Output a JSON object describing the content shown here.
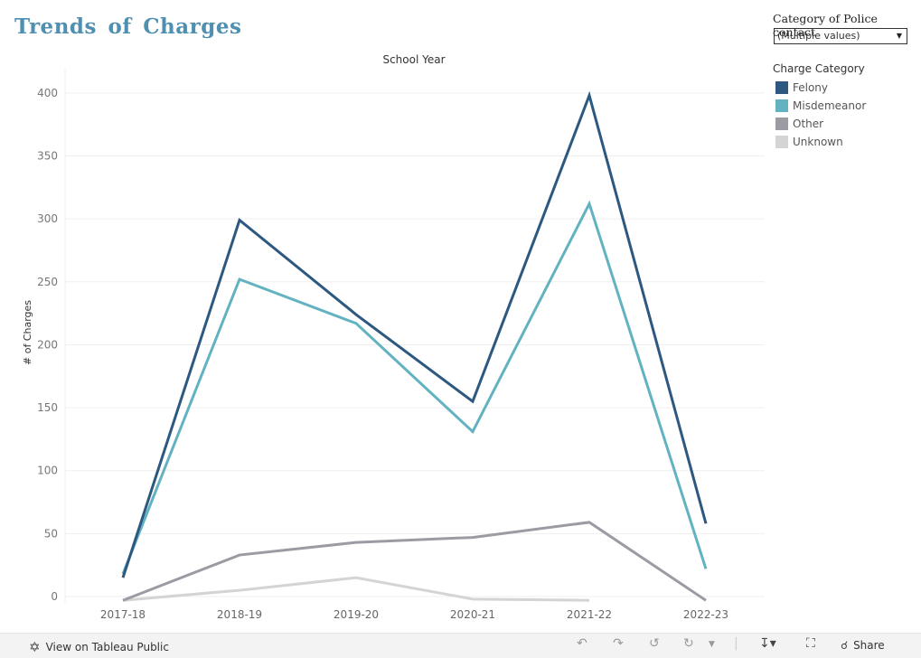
{
  "title": "Trends of Charges",
  "filter": {
    "label": "Category of Police contact",
    "value": "(Multiple values)"
  },
  "legend": {
    "title": "Charge Category",
    "items": [
      {
        "label": "Felony",
        "color": "#2d587f"
      },
      {
        "label": "Misdemeanor",
        "color": "#63b2c1"
      },
      {
        "label": "Other",
        "color": "#9b9ba3"
      },
      {
        "label": "Unknown",
        "color": "#d4d4d4"
      }
    ]
  },
  "footer": {
    "view_label": "View on Tableau Public",
    "share_label": "Share"
  },
  "chart_data": {
    "type": "line",
    "title": "School Year",
    "xlabel": "",
    "ylabel": "# of Charges",
    "categories": [
      "2017-18",
      "2018-19",
      "2019-20",
      "2020-21",
      "2021-22",
      "2022-23"
    ],
    "yticks": [
      0,
      50,
      100,
      150,
      200,
      250,
      300,
      350,
      400
    ],
    "ylim": [
      -5,
      420
    ],
    "grid": true,
    "series": [
      {
        "name": "Felony",
        "color": "#2d587f",
        "values": [
          15,
          299,
          224,
          155,
          398,
          58
        ]
      },
      {
        "name": "Misdemeanor",
        "color": "#63b2c1",
        "values": [
          18,
          252,
          217,
          131,
          312,
          22
        ]
      },
      {
        "name": "Other",
        "color": "#9b9ba3",
        "values": [
          -3,
          33,
          43,
          47,
          59,
          -3
        ]
      },
      {
        "name": "Unknown",
        "color": "#d4d4d4",
        "values": [
          -3,
          5,
          15,
          -2,
          -3,
          null
        ]
      }
    ]
  }
}
